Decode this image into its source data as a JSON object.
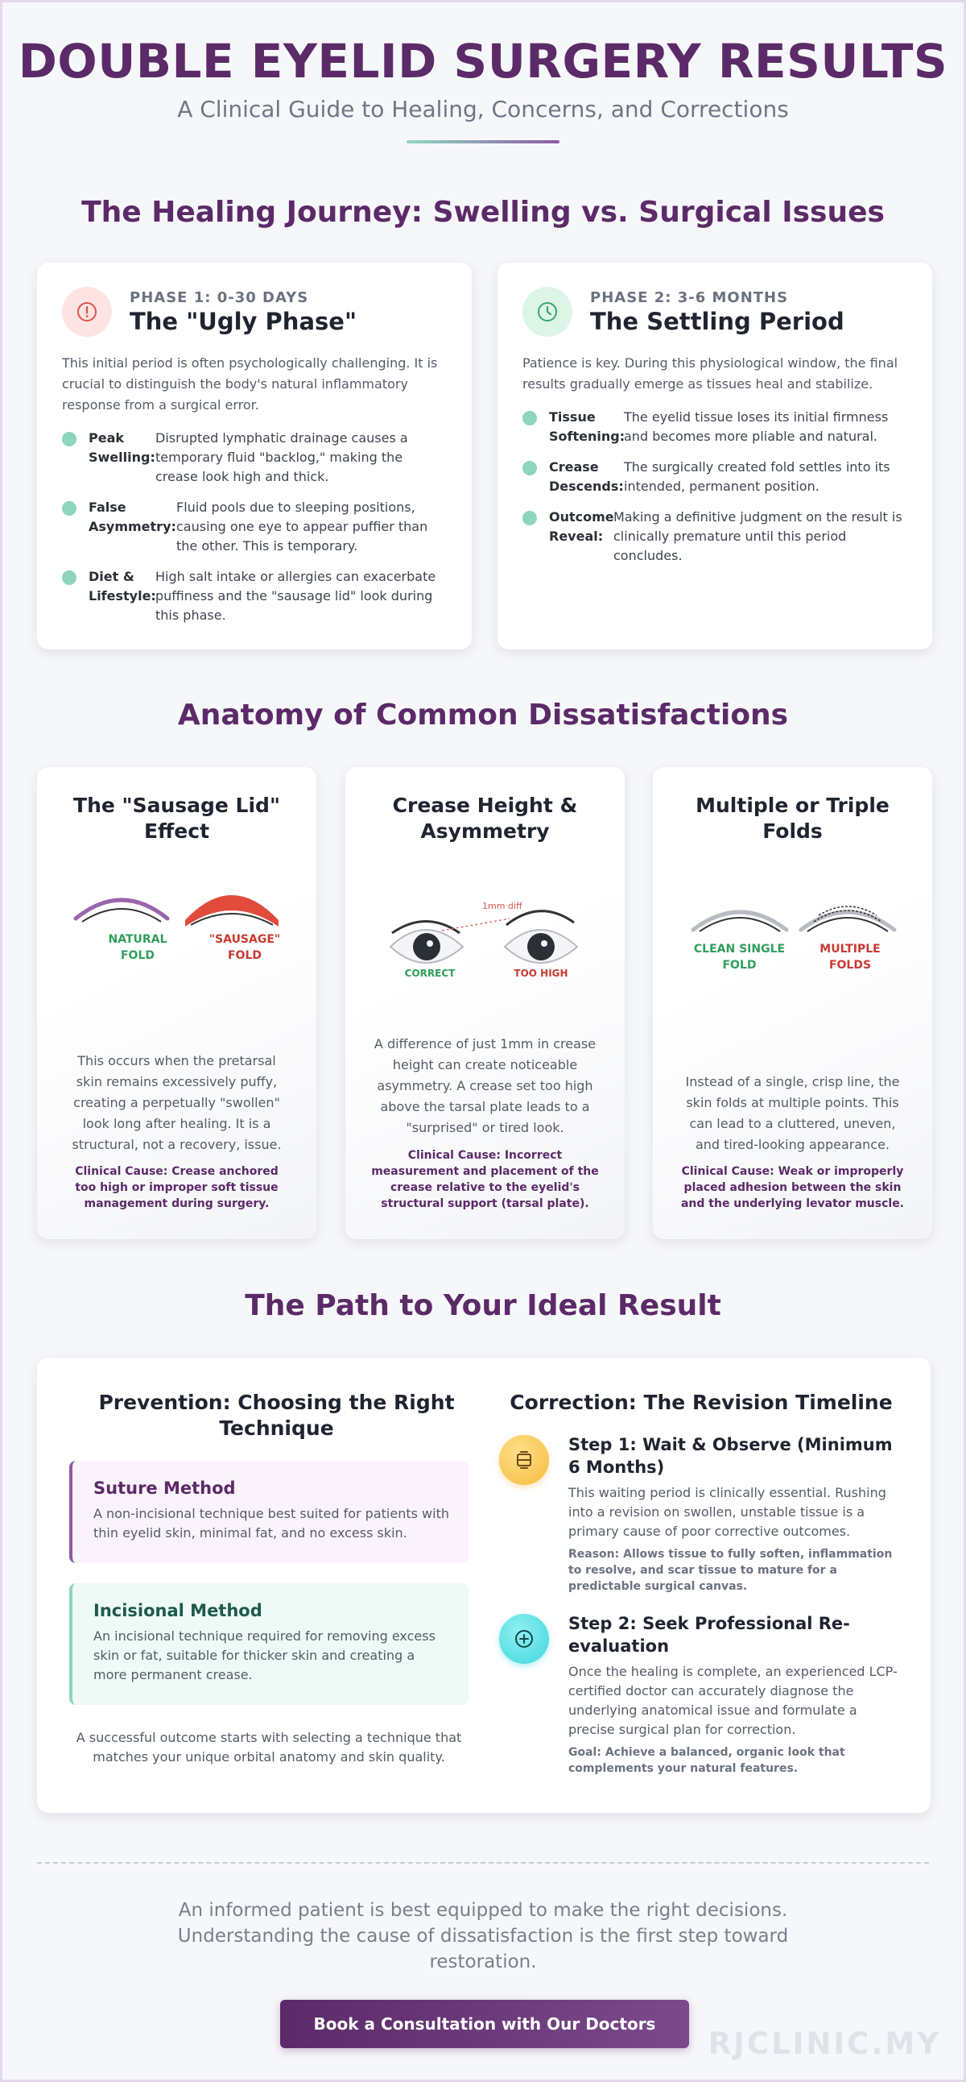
{
  "header": {
    "title": "DOUBLE EYELID SURGERY RESULTS",
    "subtitle": "A Clinical Guide to Healing, Concerns, and Corrections"
  },
  "healing": {
    "section_title": "The Healing Journey: Swelling vs. Surgical Issues",
    "phase1": {
      "icon": "alert-circle-icon",
      "kicker": "PHASE 1: 0-30 DAYS",
      "title": "The \"Ugly Phase\"",
      "intro": "This initial period is often psychologically challenging. It is crucial to distinguish the body's natural inflammatory response from a surgical error.",
      "points": [
        {
          "term": "Peak Swelling:",
          "text": "Disrupted lymphatic drainage causes a temporary fluid \"backlog,\" making the crease look high and thick."
        },
        {
          "term": "False Asymmetry:",
          "text": "Fluid pools due to sleeping positions, causing one eye to appear puffier than the other. This is temporary."
        },
        {
          "term": "Diet & Lifestyle:",
          "text": "High salt intake or allergies can exacerbate puffiness and the \"sausage lid\" look during this phase."
        }
      ]
    },
    "phase2": {
      "icon": "clock-icon",
      "kicker": "PHASE 2: 3-6 MONTHS",
      "title": "The Settling Period",
      "intro": "Patience is key. During this physiological window, the final results gradually emerge as tissues heal and stabilize.",
      "points": [
        {
          "term": "Tissue Softening:",
          "text": "The eyelid tissue loses its initial firmness and becomes more pliable and natural."
        },
        {
          "term": "Crease Descends:",
          "text": "The surgically created fold settles into its intended, permanent position."
        },
        {
          "term": "Outcome Reveal:",
          "text": "Making a definitive judgment on the result is clinically premature until this period concludes."
        }
      ]
    }
  },
  "anatomy": {
    "section_title": "Anatomy of Common Dissatisfactions",
    "cards": [
      {
        "title": "The \"Sausage Lid\" Effect",
        "label_good": "NATURAL FOLD",
        "label_bad": "\"SAUSAGE\" FOLD",
        "desc": "This occurs when the pretarsal skin remains excessively puffy, creating a perpetually \"swollen\" look long after healing. It is a structural, not a recovery, issue.",
        "cause": "Clinical Cause: Crease anchored too high or improper soft tissue management during surgery."
      },
      {
        "title": "Crease Height & Asymmetry",
        "label_good": "CORRECT",
        "label_bad": "TOO HIGH",
        "measure": "1mm diff",
        "desc": "A difference of just 1mm in crease height can create noticeable asymmetry. A crease set too high above the tarsal plate leads to a \"surprised\" or tired look.",
        "cause": "Clinical Cause: Incorrect measurement and placement of the crease relative to the eyelid's structural support (tarsal plate)."
      },
      {
        "title": "Multiple or Triple Folds",
        "label_good": "CLEAN SINGLE FOLD",
        "label_bad": "MULTIPLE FOLDS",
        "desc": "Instead of a single, crisp line, the skin folds at multiple points. This can lead to a cluttered, uneven, and tired-looking appearance.",
        "cause": "Clinical Cause: Weak or improperly placed adhesion between the skin and the underlying levator muscle."
      }
    ]
  },
  "path": {
    "section_title": "The Path to Your Ideal Result",
    "prevention": {
      "title": "Prevention: Choosing the Right Technique",
      "suture_title": "Suture Method",
      "suture_text": "A non-incisional technique best suited for patients with thin eyelid skin, minimal fat, and no excess skin.",
      "incisional_title": "Incisional Method",
      "incisional_text": "An incisional technique required for removing excess skin or fat, suitable for thicker skin and creating a more permanent crease.",
      "footer": "A successful outcome starts with selecting a technique that matches your unique orbital anatomy and skin quality."
    },
    "correction": {
      "title": "Correction: The Revision Timeline",
      "step1_icon": "hourglass-icon",
      "step1_title": "Step 1: Wait & Observe (Minimum 6 Months)",
      "step1_text": "This waiting period is clinically essential. Rushing into a revision on swollen, unstable tissue is a primary cause of poor corrective outcomes.",
      "step1_note": "Reason: Allows tissue to fully soften, inflammation to resolve, and scar tissue to mature for a predictable surgical canvas.",
      "step2_icon": "plus-circle-icon",
      "step2_title": "Step 2: Seek Professional Re-evaluation",
      "step2_text": "Once the healing is complete, an experienced LCP-certified doctor can accurately diagnose the underlying anatomical issue and formulate a precise surgical plan for correction.",
      "step2_note": "Goal: Achieve a balanced, organic look that complements your natural features."
    }
  },
  "footer": {
    "closing": "An informed patient is best equipped to make the right decisions. Understanding the cause of dissatisfaction is the first step toward restoration.",
    "cta_label": "Book a Consultation with Our Doctors",
    "watermark": "RJCLINIC.MY"
  },
  "colors": {
    "brand": "#5c2a68",
    "mint": "#8fd4bc",
    "good": "#2f9e5b",
    "bad": "#c73a32"
  }
}
